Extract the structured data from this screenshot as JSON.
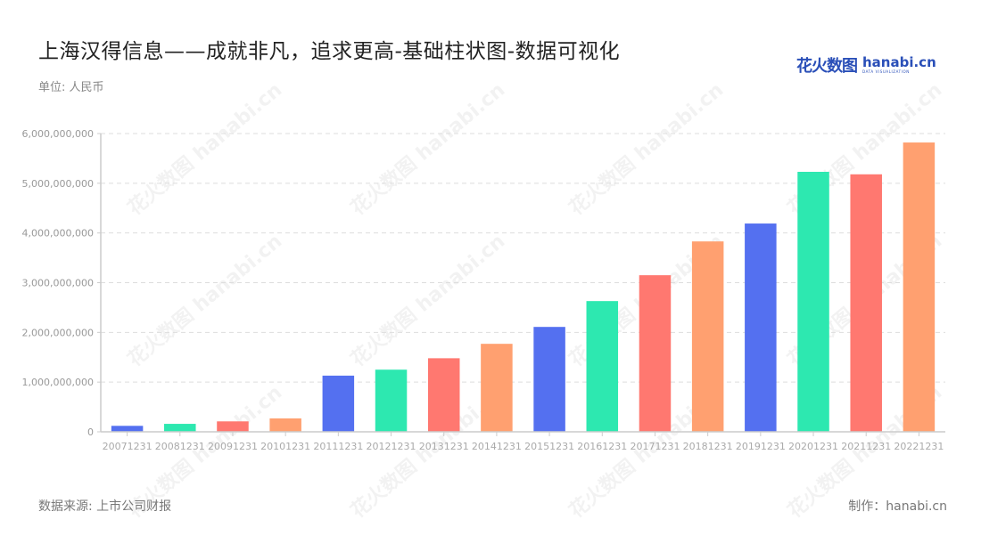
{
  "header": {
    "title": "上海汉得信息——成就非凡，追求更高-基础柱状图-数据可视化",
    "unit": "单位: 人民币",
    "logo_cn": "花火数图",
    "logo_en": "hanabi.cn",
    "logo_tagline": "DATA VISUALIZATION"
  },
  "footer": {
    "source": "数据来源: 上市公司财报",
    "credit": "制作：hanabi.cn"
  },
  "watermark": "花火数图 hanabi.cn",
  "colors": [
    "#5470f0",
    "#2de8b0",
    "#ff7870",
    "#ffa070"
  ],
  "chart_data": {
    "type": "bar",
    "title": "上海汉得信息——成就非凡，追求更高-基础柱状图-数据可视化",
    "xlabel": "",
    "ylabel": "单位: 人民币",
    "ylim": [
      0,
      6000000000
    ],
    "yticks": [
      0,
      1000000000,
      2000000000,
      3000000000,
      4000000000,
      5000000000,
      6000000000
    ],
    "ytick_labels": [
      "0",
      "1,000,000,000",
      "2,000,000,000",
      "3,000,000,000",
      "4,000,000,000",
      "5,000,000,000",
      "6,000,000,000"
    ],
    "grid": "horizontal dashed",
    "legend": "none",
    "categories": [
      "20071231",
      "20081231",
      "20091231",
      "20101231",
      "20111231",
      "20121231",
      "20131231",
      "20141231",
      "20151231",
      "20161231",
      "20171231",
      "20181231",
      "20191231",
      "20201231",
      "20211231",
      "20221231"
    ],
    "values": [
      120000000,
      160000000,
      210000000,
      270000000,
      1130000000,
      1250000000,
      1480000000,
      1770000000,
      2110000000,
      2630000000,
      3150000000,
      3830000000,
      4190000000,
      5230000000,
      5180000000,
      5820000000
    ]
  }
}
